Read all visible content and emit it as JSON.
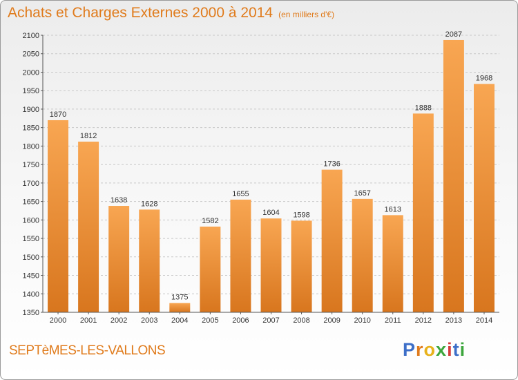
{
  "header": {
    "title": "Achats et Charges Externes 2000 à 2014",
    "unit": "(en milliers d'€)"
  },
  "footer": {
    "city": "SEPTèMES-LES-VALLONS",
    "logo_letters": [
      "P",
      "r",
      "o",
      "x",
      "i",
      "t",
      "i"
    ],
    "logo_colors": [
      "#3d6fc8",
      "#e07b1c",
      "#e8b21c",
      "#3da63d",
      "#d63a3a",
      "#3d6fc8",
      "#3da63d"
    ]
  },
  "colors": {
    "bar_top": "#f8a652",
    "bar_bottom": "#d8761e",
    "accent": "#e07b1c"
  },
  "chart_data": {
    "type": "bar",
    "title": "Achats et Charges Externes 2000 à 2014",
    "subtitle": "(en milliers d'€)",
    "categories": [
      "2000",
      "2001",
      "2002",
      "2003",
      "2004",
      "2005",
      "2006",
      "2007",
      "2008",
      "2009",
      "2010",
      "2011",
      "2012",
      "2013",
      "2014"
    ],
    "values": [
      1870,
      1812,
      1638,
      1628,
      1375,
      1582,
      1655,
      1604,
      1598,
      1736,
      1657,
      1613,
      1888,
      2087,
      1968
    ],
    "ylim": [
      1350,
      2100
    ],
    "yticks": [
      1350,
      1400,
      1450,
      1500,
      1550,
      1600,
      1650,
      1700,
      1750,
      1800,
      1850,
      1900,
      1950,
      2000,
      2050,
      2100
    ],
    "grid": true,
    "data_labels": true
  }
}
